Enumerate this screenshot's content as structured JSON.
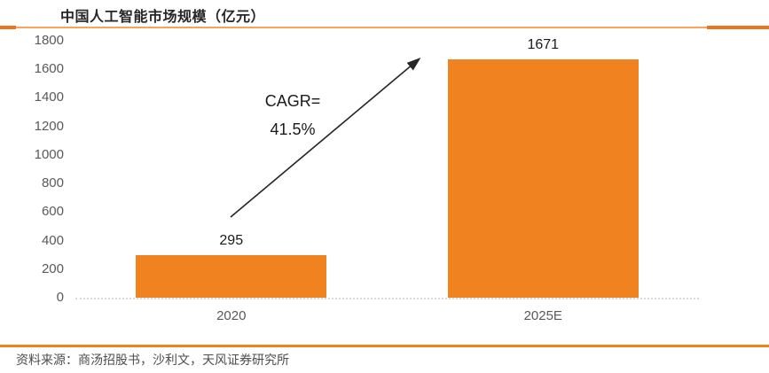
{
  "header": {
    "title": "中国人工智能市场规模（亿元）"
  },
  "colors": {
    "bar": "#F0831F",
    "accent_rule": "#E87722",
    "rule_thin": "#F6A45D",
    "footer_rule": "#F0831F",
    "baseline": "#D9D9D9",
    "axis_text": "#595959",
    "value_text": "#1A1A1A",
    "arrow": "#262626",
    "source_text": "#4D4D4D"
  },
  "chart_data": {
    "type": "bar",
    "title": "中国人工智能市场规模（亿元）",
    "categories": [
      "2020",
      "2025E"
    ],
    "values": [
      295,
      1671
    ],
    "value_labels": [
      "295",
      "1671"
    ],
    "xlabel": "",
    "ylabel": "",
    "ylim": [
      0,
      1800
    ],
    "ytick_step": 200,
    "yticks": [
      1800,
      1600,
      1400,
      1200,
      1000,
      800,
      600,
      400,
      200,
      0
    ],
    "grid": false,
    "legend_position": "none",
    "annotation": {
      "line1": "CAGR=",
      "line2": "41.5%"
    }
  },
  "footer": {
    "source": "资料来源：商汤招股书，沙利文，天风证券研究所"
  }
}
